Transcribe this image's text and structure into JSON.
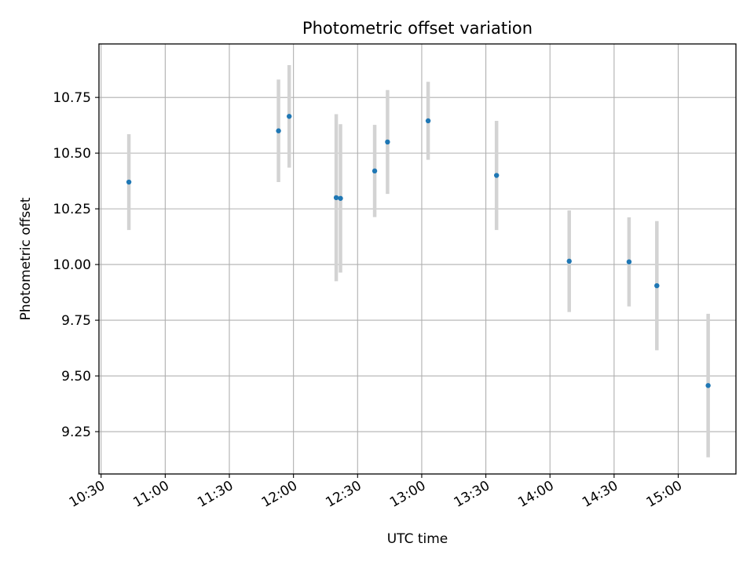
{
  "chart_data": {
    "type": "scatter",
    "title": "Photometric offset variation",
    "xlabel": "UTC time",
    "ylabel": "Photometric offset",
    "x_ticks": [
      "10:30",
      "11:00",
      "11:30",
      "12:00",
      "12:30",
      "13:00",
      "13:30",
      "14:00",
      "14:30",
      "15:00"
    ],
    "y_ticks": [
      "9.25",
      "9.50",
      "9.75",
      "10.00",
      "10.25",
      "10.50",
      "10.75"
    ],
    "xlim": [
      "10:29",
      "15:27"
    ],
    "ylim": [
      9.06,
      10.99
    ],
    "grid": true,
    "colors": {
      "point": "#1f77b4",
      "errorbar": "#d3d3d3",
      "grid": "#b0b0b0"
    },
    "series": [
      {
        "points": [
          {
            "x": "10:43",
            "y": 10.37,
            "err": 0.215
          },
          {
            "x": "11:53",
            "y": 10.6,
            "err": 0.23
          },
          {
            "x": "11:58",
            "y": 10.665,
            "err": 0.23
          },
          {
            "x": "12:20",
            "y": 10.3,
            "err": 0.375
          },
          {
            "x": "12:22",
            "y": 10.297,
            "err": 0.333
          },
          {
            "x": "12:38",
            "y": 10.42,
            "err": 0.207
          },
          {
            "x": "12:44",
            "y": 10.55,
            "err": 0.233
          },
          {
            "x": "13:03",
            "y": 10.645,
            "err": 0.175
          },
          {
            "x": "13:35",
            "y": 10.4,
            "err": 0.245
          },
          {
            "x": "14:09",
            "y": 10.015,
            "err": 0.228
          },
          {
            "x": "14:37",
            "y": 10.012,
            "err": 0.2
          },
          {
            "x": "14:50",
            "y": 9.905,
            "err": 0.29
          },
          {
            "x": "15:14",
            "y": 9.457,
            "err": 0.322
          }
        ]
      }
    ]
  }
}
